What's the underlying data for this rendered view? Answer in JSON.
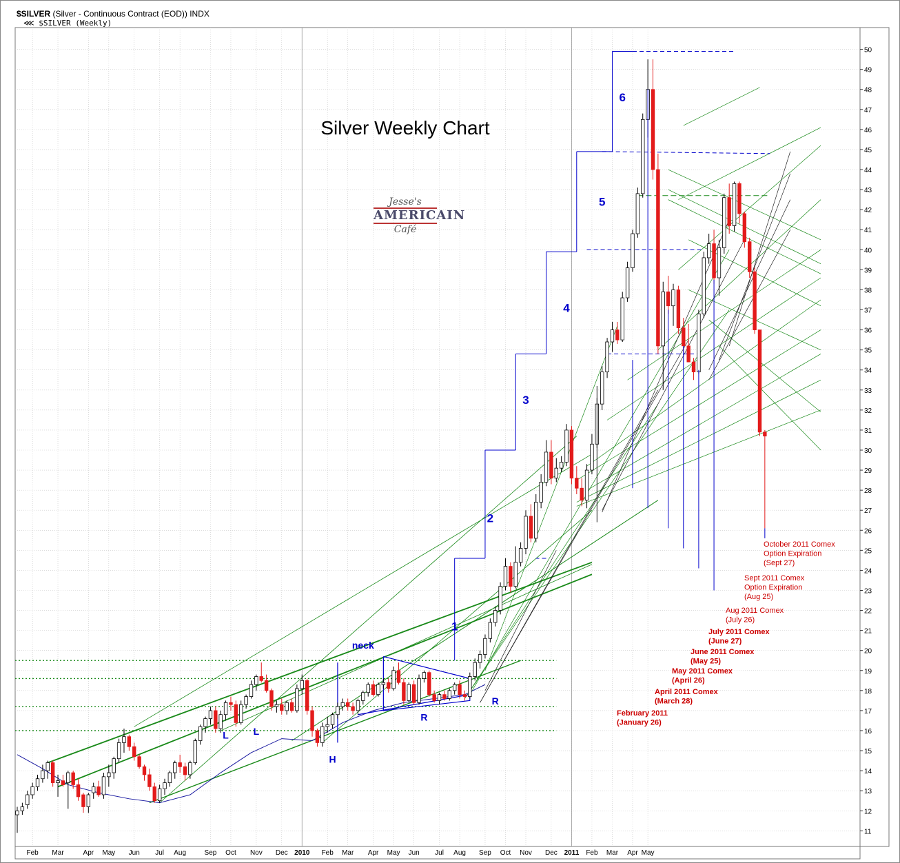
{
  "header": {
    "symbol": "$SILVER",
    "description": "(Silver - Continuous Contract (EOD)) INDX",
    "series_label": "$SILVER (Weekly)"
  },
  "logo": {
    "line1": "Jesse's",
    "line2": "AMERICAIN",
    "line3": "Café"
  },
  "colors": {
    "up": "#ffffff",
    "down": "#e31b1b",
    "blue": "#0000cc",
    "green": "#1a8a1a",
    "red_text": "#cc0000",
    "grid": "#c8c8c8"
  },
  "chart_data": {
    "type": "candlestick",
    "title": "Silver Weekly Chart",
    "ylim": [
      10.5,
      50.5
    ],
    "y_ticks": [
      11,
      12,
      13,
      14,
      15,
      16,
      17,
      18,
      19,
      20,
      21,
      22,
      23,
      24,
      25,
      26,
      27,
      28,
      29,
      30,
      31,
      32,
      33,
      34,
      35,
      36,
      37,
      38,
      39,
      40,
      41,
      42,
      43,
      44,
      45,
      46,
      47,
      48,
      49,
      50
    ],
    "x_tick_labels": [
      "Feb",
      "Mar",
      "Apr",
      "May",
      "Jun",
      "Jul",
      "Aug",
      "Sep",
      "Oct",
      "Nov",
      "Dec",
      "2010",
      "Feb",
      "Mar",
      "Apr",
      "May",
      "Jun",
      "Jul",
      "Aug",
      "Sep",
      "Oct",
      "Nov",
      "Dec",
      "2011",
      "Feb",
      "Mar",
      "Apr",
      "May"
    ],
    "x_tick_weeks": [
      3,
      8,
      14,
      18,
      23,
      28,
      32,
      38,
      42,
      47,
      52,
      56,
      61,
      65,
      70,
      74,
      78,
      83,
      87,
      92,
      96,
      100,
      105,
      109,
      113,
      117,
      121,
      124
    ],
    "candles": [
      [
        0,
        11.8,
        12.2,
        10.9,
        12.0
      ],
      [
        1,
        12.0,
        12.4,
        11.8,
        12.2
      ],
      [
        2,
        12.3,
        13.0,
        12.1,
        12.8
      ],
      [
        3,
        12.8,
        13.4,
        12.6,
        13.2
      ],
      [
        4,
        13.2,
        13.8,
        13.0,
        13.6
      ],
      [
        5,
        13.6,
        14.3,
        13.4,
        14.0
      ],
      [
        6,
        14.0,
        14.5,
        13.6,
        14.4
      ],
      [
        7,
        14.4,
        14.5,
        13.2,
        13.4
      ],
      [
        8,
        13.4,
        13.8,
        12.7,
        13.5
      ],
      [
        9,
        13.5,
        13.8,
        13.2,
        13.3
      ],
      [
        10,
        13.4,
        14.0,
        12.1,
        13.9
      ],
      [
        11,
        13.9,
        14.0,
        13.1,
        13.3
      ],
      [
        12,
        13.3,
        13.6,
        12.5,
        12.7
      ],
      [
        13,
        12.8,
        12.9,
        11.9,
        12.2
      ],
      [
        14,
        12.2,
        12.9,
        11.9,
        12.8
      ],
      [
        15,
        12.9,
        13.4,
        12.6,
        13.2
      ],
      [
        16,
        13.2,
        13.5,
        12.7,
        12.8
      ],
      [
        17,
        12.8,
        13.9,
        12.6,
        13.7
      ],
      [
        18,
        13.7,
        14.3,
        13.2,
        13.9
      ],
      [
        19,
        13.9,
        14.7,
        13.6,
        14.6
      ],
      [
        20,
        14.6,
        15.6,
        14.4,
        15.4
      ],
      [
        21,
        15.4,
        16.1,
        14.9,
        15.7
      ],
      [
        22,
        15.7,
        15.8,
        15.0,
        15.2
      ],
      [
        23,
        15.2,
        15.4,
        14.5,
        14.7
      ],
      [
        24,
        14.7,
        14.8,
        14.1,
        14.2
      ],
      [
        25,
        14.2,
        14.3,
        13.5,
        13.8
      ],
      [
        26,
        13.8,
        14.1,
        13.0,
        13.2
      ],
      [
        27,
        13.2,
        13.4,
        12.4,
        12.5
      ],
      [
        28,
        12.5,
        13.3,
        12.4,
        13.1
      ],
      [
        29,
        13.1,
        13.6,
        12.8,
        13.4
      ],
      [
        30,
        13.4,
        14.0,
        13.2,
        13.9
      ],
      [
        31,
        13.9,
        14.5,
        13.6,
        14.4
      ],
      [
        32,
        14.4,
        14.8,
        13.9,
        14.2
      ],
      [
        33,
        14.2,
        14.4,
        13.5,
        13.8
      ],
      [
        34,
        13.8,
        14.5,
        13.6,
        14.4
      ],
      [
        35,
        14.4,
        15.6,
        14.3,
        15.5
      ],
      [
        36,
        15.5,
        16.3,
        15.3,
        16.2
      ],
      [
        37,
        16.2,
        16.7,
        15.9,
        16.6
      ],
      [
        38,
        16.6,
        17.2,
        16.3,
        17.0
      ],
      [
        39,
        17.0,
        17.2,
        15.9,
        16.1
      ],
      [
        40,
        16.1,
        17.0,
        15.9,
        16.8
      ],
      [
        41,
        16.8,
        17.5,
        16.5,
        17.4
      ],
      [
        42,
        17.4,
        17.7,
        17.0,
        17.3
      ],
      [
        43,
        17.3,
        17.5,
        16.2,
        16.4
      ],
      [
        44,
        16.4,
        17.5,
        16.3,
        17.3
      ],
      [
        45,
        17.3,
        17.8,
        17.1,
        17.7
      ],
      [
        46,
        17.7,
        18.5,
        17.6,
        18.3
      ],
      [
        47,
        18.3,
        18.8,
        18.0,
        18.7
      ],
      [
        48,
        18.7,
        19.4,
        18.4,
        18.5
      ],
      [
        49,
        18.5,
        18.8,
        17.9,
        18.0
      ],
      [
        50,
        18.0,
        18.1,
        17.0,
        17.2
      ],
      [
        51,
        17.2,
        17.5,
        16.9,
        17.3
      ],
      [
        52,
        17.3,
        17.6,
        16.8,
        17.0
      ],
      [
        53,
        17.0,
        17.5,
        16.8,
        17.4
      ],
      [
        54,
        17.4,
        17.6,
        16.9,
        17.0
      ],
      [
        55,
        17.0,
        18.3,
        16.9,
        18.1
      ],
      [
        56,
        18.1,
        18.8,
        17.8,
        18.5
      ],
      [
        57,
        18.5,
        18.6,
        16.8,
        17.0
      ],
      [
        58,
        17.0,
        17.2,
        15.7,
        16.0
      ],
      [
        59,
        16.0,
        16.1,
        15.2,
        15.4
      ],
      [
        60,
        15.4,
        16.4,
        15.2,
        16.2
      ],
      [
        61,
        16.2,
        16.7,
        15.9,
        16.3
      ],
      [
        62,
        16.3,
        16.9,
        16.1,
        16.8
      ],
      [
        63,
        16.8,
        17.4,
        16.6,
        17.2
      ],
      [
        64,
        17.2,
        17.6,
        17.0,
        17.4
      ],
      [
        65,
        17.4,
        17.6,
        17.0,
        17.2
      ],
      [
        66,
        17.2,
        17.4,
        16.8,
        17.0
      ],
      [
        67,
        17.0,
        17.6,
        16.8,
        17.5
      ],
      [
        68,
        17.5,
        18.0,
        17.3,
        17.9
      ],
      [
        69,
        17.9,
        18.4,
        17.7,
        18.3
      ],
      [
        70,
        18.3,
        18.5,
        17.7,
        17.8
      ],
      [
        71,
        17.8,
        18.4,
        17.7,
        18.3
      ],
      [
        72,
        18.3,
        18.6,
        18.1,
        18.4
      ],
      [
        73,
        18.4,
        18.6,
        17.9,
        18.1
      ],
      [
        74,
        18.1,
        19.2,
        18.0,
        19.0
      ],
      [
        75,
        19.0,
        19.4,
        18.3,
        18.4
      ],
      [
        76,
        18.4,
        18.6,
        17.3,
        17.5
      ],
      [
        77,
        17.5,
        18.4,
        17.4,
        18.3
      ],
      [
        78,
        18.3,
        18.5,
        17.3,
        17.4
      ],
      [
        79,
        17.4,
        18.8,
        17.3,
        18.6
      ],
      [
        80,
        18.6,
        19.0,
        18.4,
        18.9
      ],
      [
        81,
        18.9,
        19.0,
        17.7,
        17.8
      ],
      [
        82,
        17.8,
        18.0,
        17.4,
        17.5
      ],
      [
        83,
        17.5,
        17.9,
        17.3,
        17.8
      ],
      [
        84,
        17.8,
        18.0,
        17.5,
        17.6
      ],
      [
        85,
        17.6,
        18.1,
        17.5,
        18.0
      ],
      [
        86,
        18.0,
        18.4,
        17.8,
        18.3
      ],
      [
        87,
        18.3,
        18.5,
        17.6,
        17.8
      ],
      [
        88,
        17.8,
        18.0,
        17.5,
        17.7
      ],
      [
        89,
        17.7,
        18.9,
        17.6,
        18.7
      ],
      [
        90,
        18.7,
        19.6,
        18.5,
        19.4
      ],
      [
        91,
        19.4,
        20.0,
        19.1,
        19.8
      ],
      [
        92,
        19.8,
        20.8,
        19.6,
        20.6
      ],
      [
        93,
        20.6,
        21.6,
        20.4,
        21.4
      ],
      [
        94,
        21.4,
        22.2,
        21.2,
        22.0
      ],
      [
        95,
        22.0,
        23.4,
        21.8,
        23.2
      ],
      [
        96,
        23.2,
        24.6,
        23.0,
        24.2
      ],
      [
        97,
        24.2,
        24.4,
        22.9,
        23.2
      ],
      [
        98,
        23.2,
        25.2,
        23.1,
        24.4
      ],
      [
        99,
        24.4,
        25.4,
        24.2,
        25.1
      ],
      [
        100,
        25.1,
        27.0,
        24.8,
        26.7
      ],
      [
        101,
        26.7,
        27.3,
        25.4,
        25.6
      ],
      [
        102,
        25.6,
        27.8,
        25.4,
        27.4
      ],
      [
        103,
        27.4,
        28.8,
        27.1,
        28.4
      ],
      [
        104,
        28.4,
        30.5,
        28.2,
        29.9
      ],
      [
        105,
        29.9,
        30.5,
        28.3,
        28.6
      ],
      [
        106,
        28.6,
        29.6,
        28.4,
        29.1
      ],
      [
        107,
        29.1,
        29.7,
        28.9,
        29.4
      ],
      [
        108,
        29.4,
        31.3,
        29.2,
        31.0
      ],
      [
        109,
        31.0,
        31.2,
        28.3,
        28.6
      ],
      [
        110,
        28.6,
        29.2,
        27.8,
        28.1
      ],
      [
        111,
        28.1,
        28.6,
        27.2,
        27.5
      ],
      [
        112,
        27.5,
        29.3,
        27.1,
        29.0
      ],
      [
        113,
        29.0,
        30.8,
        28.8,
        30.3
      ],
      [
        114,
        30.3,
        32.6,
        30.1,
        32.3
      ],
      [
        115,
        32.3,
        34.2,
        32.0,
        33.9
      ],
      [
        116,
        33.9,
        35.6,
        33.6,
        35.4
      ],
      [
        117,
        35.4,
        36.4,
        34.9,
        36.0
      ],
      [
        118,
        36.0,
        36.4,
        35.3,
        35.5
      ],
      [
        119,
        35.5,
        37.9,
        35.4,
        37.6
      ],
      [
        120,
        37.6,
        39.4,
        37.4,
        39.1
      ],
      [
        121,
        39.1,
        41.0,
        38.9,
        40.8
      ],
      [
        122,
        40.8,
        43.1,
        40.6,
        42.8
      ],
      [
        123,
        42.8,
        46.8,
        42.6,
        46.5
      ],
      [
        124,
        46.5,
        49.5,
        45.6,
        48.0
      ],
      [
        125,
        48.0,
        49.5,
        43.5,
        44.0
      ],
      [
        126,
        44.0,
        44.8,
        34.8,
        35.2
      ],
      [
        127,
        35.2,
        38.4,
        33.0,
        37.9
      ],
      [
        128,
        37.9,
        38.7,
        36.8,
        37.2
      ],
      [
        129,
        37.2,
        38.3,
        36.2,
        38.0
      ],
      [
        130,
        38.0,
        38.2,
        35.8,
        36.1
      ],
      [
        131,
        36.1,
        36.6,
        34.9,
        35.2
      ],
      [
        132,
        35.2,
        36.3,
        34.4,
        34.4
      ],
      [
        133,
        34.4,
        34.6,
        33.5,
        33.9
      ],
      [
        134,
        33.9,
        37.0,
        33.8,
        36.8
      ],
      [
        135,
        36.8,
        39.9,
        36.6,
        39.6
      ],
      [
        136,
        39.6,
        40.8,
        39.3,
        40.3
      ],
      [
        137,
        40.3,
        41.0,
        38.3,
        38.6
      ],
      [
        138,
        38.6,
        40.5,
        37.7,
        40.1
      ],
      [
        139,
        40.1,
        42.8,
        39.8,
        42.6
      ],
      [
        140,
        42.6,
        43.3,
        40.8,
        41.2
      ],
      [
        141,
        41.2,
        43.4,
        40.9,
        43.3
      ],
      [
        142,
        43.3,
        43.4,
        41.3,
        41.8
      ],
      [
        143,
        41.8,
        41.9,
        40.1,
        40.4
      ],
      [
        144,
        40.4,
        40.6,
        38.6,
        38.9
      ],
      [
        145,
        38.9,
        39.1,
        35.8,
        36.0
      ],
      [
        146,
        36.0,
        36.0,
        30.7,
        30.9
      ],
      [
        147,
        30.9,
        31.0,
        26.1,
        30.7
      ]
    ],
    "annotations": {
      "wave_labels": [
        "1",
        "2",
        "3",
        "4",
        "5",
        "6"
      ],
      "pattern_labels": [
        "neck",
        "L",
        "L",
        "H",
        "R",
        "R"
      ],
      "expirations": [
        [
          "February 2011",
          "(January 26)"
        ],
        [
          "April 2011 Comex",
          "(March 28)"
        ],
        [
          "May 2011 Comex",
          "(April 26)"
        ],
        [
          "June 2011 Comex",
          "(May 25)"
        ],
        [
          "July 2011 Comex",
          "(June 27)"
        ],
        [
          "Aug 2011 Comex",
          "(July 26)"
        ],
        [
          "Sept 2011 Comex",
          "Option Expiration",
          "(Aug 25)"
        ],
        [
          "October 2011 Comex",
          "Option Expiration",
          "(Sept 27)"
        ]
      ]
    }
  }
}
